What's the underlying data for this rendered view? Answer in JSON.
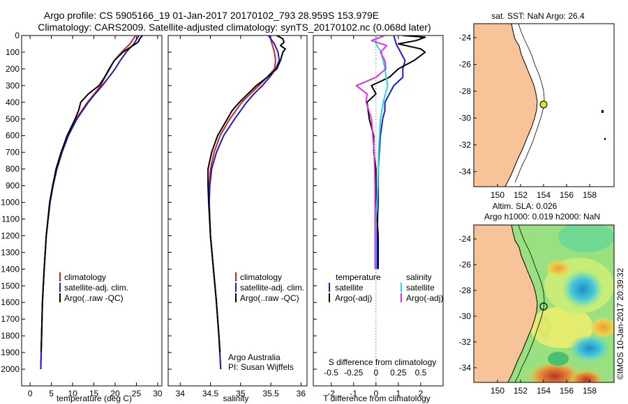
{
  "title_line1": "Argo profile: CS 5905166_19 01-Jan-2017 20170102_793 28.959S 153.979E",
  "title_line2": "Climatology: CARS2009. Satellite-adjusted climatology: synTS_20170102.nc (0.068d later)",
  "colors": {
    "climatology": "#d42020",
    "satellite": "#1a1ad0",
    "argo": "#000000",
    "sal_satellite": "#22d8e0",
    "sal_argo": "#e030e0",
    "land": "#f7c49a",
    "grid_dot": "#444444"
  },
  "chart_data": [
    {
      "type": "line",
      "xlabel": "temperature (deg C)",
      "ylabel": "",
      "xlim": [
        -2,
        31
      ],
      "ylim": [
        2100,
        0
      ],
      "xticks": [
        0,
        5,
        10,
        15,
        20,
        25,
        30
      ],
      "yticks": [
        0,
        100,
        200,
        300,
        400,
        500,
        600,
        700,
        800,
        900,
        1000,
        1100,
        1200,
        1300,
        1400,
        1500,
        1600,
        1700,
        1800,
        1900,
        2000
      ],
      "legend": [
        "climatology",
        "satellite-adj. clim.",
        "Argo(..raw -QC)"
      ],
      "series": [
        {
          "name": "climatology",
          "depth": [
            0,
            50,
            100,
            150,
            200,
            250,
            300,
            350,
            400,
            500,
            600,
            700,
            800,
            900,
            1000,
            1200,
            1400,
            1600,
            1800,
            2000
          ],
          "values": [
            24.8,
            23.5,
            21.5,
            19.8,
            18.7,
            17.6,
            16.6,
            15.1,
            13.5,
            10.8,
            8.9,
            7.4,
            6.2,
            5.3,
            4.6,
            3.8,
            3.3,
            2.9,
            2.7,
            2.5
          ]
        },
        {
          "name": "satellite-adj. clim.",
          "depth": [
            0,
            50,
            100,
            150,
            200,
            250,
            300,
            350,
            400,
            500,
            600,
            700,
            800,
            900,
            1000,
            1200,
            1400,
            1600,
            1800,
            2000
          ],
          "values": [
            25.6,
            24.4,
            22.6,
            21.2,
            20.0,
            18.5,
            17.0,
            15.3,
            13.7,
            11.0,
            9.0,
            7.5,
            6.3,
            5.4,
            4.7,
            3.8,
            3.3,
            2.9,
            2.7,
            2.5
          ]
        },
        {
          "name": "Argo(..raw -QC)",
          "depth": [
            0,
            20,
            40,
            60,
            80,
            100,
            150,
            200,
            250,
            300,
            350,
            400,
            450,
            500,
            600,
            700,
            800,
            900,
            1000,
            1200,
            1400,
            1600,
            1800,
            1900
          ],
          "values": [
            26.4,
            25.8,
            25.4,
            24.2,
            23.0,
            21.8,
            19.8,
            18.6,
            17.5,
            16.2,
            13.7,
            11.9,
            11.4,
            10.6,
            8.7,
            7.3,
            6.1,
            5.3,
            4.6,
            3.8,
            3.3,
            2.9,
            2.7,
            2.6
          ]
        }
      ]
    },
    {
      "type": "line",
      "xlabel": "salinity",
      "ylabel": "",
      "xlim": [
        33.8,
        36.1
      ],
      "ylim": [
        2100,
        0
      ],
      "xticks": [
        34,
        34.5,
        35,
        35.5,
        36
      ],
      "legend": [
        "climatology",
        "satellite-adj. clim.",
        "Argo(..raw -QC)"
      ],
      "annotation": [
        "Argo Australia",
        "PI: Susan Wijffels"
      ],
      "series": [
        {
          "name": "climatology",
          "depth": [
            0,
            50,
            100,
            150,
            200,
            250,
            300,
            350,
            400,
            500,
            600,
            700,
            800,
            900,
            1000,
            1200,
            1400,
            1600,
            1800,
            2000
          ],
          "values": [
            35.48,
            35.52,
            35.56,
            35.58,
            35.56,
            35.44,
            35.3,
            35.16,
            35.02,
            34.82,
            34.66,
            34.56,
            34.5,
            34.48,
            34.48,
            34.5,
            34.55,
            34.6,
            34.64,
            34.67
          ]
        },
        {
          "name": "satellite-adj. clim.",
          "depth": [
            0,
            50,
            100,
            150,
            200,
            250,
            300,
            350,
            400,
            500,
            600,
            700,
            800,
            900,
            1000,
            1200,
            1400,
            1600,
            1800,
            2000
          ],
          "values": [
            35.46,
            35.56,
            35.62,
            35.64,
            35.58,
            35.48,
            35.36,
            35.22,
            35.1,
            34.9,
            34.72,
            34.6,
            34.52,
            34.49,
            34.48,
            34.5,
            34.55,
            34.6,
            34.64,
            34.67
          ]
        },
        {
          "name": "Argo(..raw -QC)",
          "depth": [
            0,
            20,
            40,
            60,
            80,
            100,
            150,
            200,
            250,
            300,
            350,
            400,
            450,
            500,
            600,
            700,
            800,
            900,
            1000,
            1200,
            1400,
            1600,
            1800,
            1900
          ],
          "values": [
            35.6,
            35.7,
            35.72,
            35.66,
            35.74,
            35.7,
            35.66,
            35.6,
            35.44,
            35.26,
            35.12,
            34.98,
            34.86,
            34.78,
            34.62,
            34.52,
            34.46,
            34.46,
            34.47,
            34.5,
            34.55,
            34.6,
            34.64,
            34.66
          ]
        }
      ]
    },
    {
      "type": "line",
      "xlabel": "T difference from climatology",
      "xlabel_top": "S difference from climatology",
      "xlim": [
        -2.8,
        3.0
      ],
      "ylim": [
        2100,
        0
      ],
      "xticks": [
        -2,
        -1,
        0,
        1,
        2
      ],
      "xticks_top_labels": [
        "-0.5",
        "-0.25",
        "0",
        "0.25",
        "0.5"
      ],
      "legend_left": [
        "temperature",
        "satellite",
        "Argo(-adj)"
      ],
      "legend_right": [
        "salinity",
        "satellite",
        "Argo(-adj)"
      ],
      "series": [
        {
          "name": "satellite",
          "depth": [
            0,
            50,
            100,
            150,
            200,
            250,
            300,
            350,
            400,
            450,
            500,
            600,
            700,
            800,
            900,
            1000,
            1200,
            1400
          ],
          "values": [
            0.8,
            0.9,
            1.1,
            1.3,
            1.2,
            1.2,
            0.8,
            0.6,
            0.4,
            0.4,
            0.3,
            0.2,
            0.15,
            0.1,
            0.1,
            0.1,
            0.05,
            0.05
          ]
        },
        {
          "name": "Argo(-adj)",
          "depth": [
            0,
            10,
            30,
            50,
            80,
            100,
            150,
            200,
            250,
            300,
            350,
            400,
            500,
            600,
            700,
            800,
            1000,
            1200,
            1400
          ],
          "values": [
            1.2,
            2.2,
            1.8,
            1.0,
            2.0,
            2.2,
            1.7,
            1.0,
            0.6,
            -0.2,
            0.0,
            -0.4,
            -0.3,
            -0.1,
            -0.1,
            0.0,
            0.0,
            0.1,
            0.1
          ]
        },
        {
          "name": "satellite",
          "depth": [
            0,
            50,
            100,
            200,
            300,
            400,
            500,
            700,
            900,
            1100,
            1400
          ],
          "values": [
            0.0,
            0.0,
            0.06,
            0.1,
            0.13,
            0.08,
            0.05,
            0.03,
            0.02,
            0.0,
            0.0
          ]
        },
        {
          "name": "Argo(-adj)",
          "depth": [
            0,
            30,
            60,
            100,
            150,
            200,
            250,
            300,
            350,
            400,
            500,
            700,
            900,
            1100,
            1400
          ],
          "values": [
            0.1,
            -0.05,
            0.12,
            0.05,
            0.1,
            0.11,
            0.0,
            -0.22,
            -0.1,
            -0.11,
            -0.05,
            -0.02,
            -0.01,
            -0.01,
            -0.01
          ]
        }
      ]
    },
    {
      "type": "map",
      "title": "sat. SST: NaN Argo: 26.4",
      "xticks": [
        "150",
        "152",
        "154",
        "156",
        "158"
      ],
      "yticks": [
        "-24",
        "-26",
        "-28",
        "-30",
        "-32",
        "-34"
      ],
      "marker": {
        "lon": 153.979,
        "lat": -28.959
      }
    },
    {
      "type": "heatmap",
      "title_line1": "Altim. SLA: 0.026",
      "title_line2": "Argo h1000: 0.019 h2000: NaN",
      "xticks": [
        "150",
        "152",
        "154",
        "156",
        "158"
      ],
      "yticks": [
        "-24",
        "-26",
        "-28",
        "-30",
        "-32",
        "-34"
      ],
      "marker": {
        "lon": 153.979,
        "lat": -28.959
      }
    }
  ],
  "watermark": "©IMOS 10-Jan-2017 20:39:32"
}
